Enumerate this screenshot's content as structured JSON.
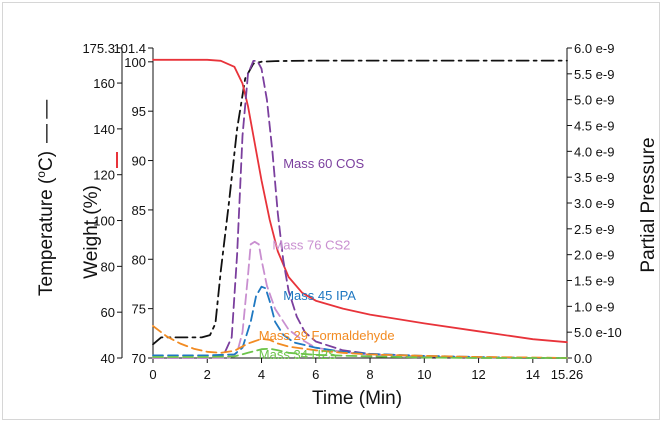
{
  "chart_data": {
    "type": "line",
    "title": "",
    "xlabel": "Time (Min)",
    "xlim": [
      0,
      15.26
    ],
    "x_ticks": [
      "0",
      "2",
      "4",
      "6",
      "8",
      "10",
      "12",
      "14",
      "15.26"
    ],
    "x_tick_values": [
      0,
      2,
      4,
      6,
      8,
      10,
      12,
      14,
      15.26
    ],
    "grid": false,
    "axes": {
      "temperature": {
        "label": "Temperature (",
        "label_sup": "o",
        "label_tail": "C)",
        "legend_marker": "— —",
        "ylim": [
          40,
          175.3
        ],
        "ticks": [
          "40",
          "60",
          "80",
          "100",
          "120",
          "140",
          "160",
          "175.3"
        ],
        "tick_values": [
          40,
          60,
          80,
          100,
          120,
          140,
          160,
          175.3
        ]
      },
      "weight": {
        "label": "Weight (%)",
        "ylim": [
          70,
          101.4
        ],
        "ticks": [
          "70",
          "75",
          "80",
          "85",
          "90",
          "95",
          "100",
          "101.4"
        ],
        "tick_values": [
          70,
          75,
          80,
          85,
          90,
          95,
          100,
          101.4
        ],
        "marker_color": "#e8333a"
      },
      "pressure": {
        "label": "Partial Pressure",
        "ylim": [
          0,
          6e-09
        ],
        "ticks": [
          "0.0",
          "5.0 e-10",
          "1.0 e-9",
          "1.5 e-9",
          "2.0 e-9",
          "2.5 e-9",
          "3.0 e-9",
          "3.5 e-9",
          "4.0 e-9",
          "4.5 e-9",
          "5.0 e-9",
          "5.5 e-9",
          "6.0 e-9"
        ],
        "tick_values": [
          0,
          5e-10,
          1e-09,
          1.5e-09,
          2e-09,
          2.5e-09,
          3e-09,
          3.5e-09,
          4e-09,
          4.5e-09,
          5e-09,
          5.5e-09,
          6e-09
        ]
      }
    },
    "series": [
      {
        "name": "",
        "axis": "temperature",
        "color": "#111111",
        "dash": "dashdot",
        "x": [
          0,
          0.3,
          1.0,
          1.8,
          2.1,
          2.3,
          2.5,
          2.8,
          3.1,
          3.4,
          3.7,
          4.0,
          4.5,
          6.0,
          8.0,
          10.0,
          12.0,
          14.0,
          15.26
        ],
        "y": [
          46,
          49,
          49,
          49,
          50,
          55,
          78,
          108,
          140,
          162,
          168.5,
          169.3,
          169.6,
          169.8,
          169.8,
          169.8,
          169.8,
          169.8,
          169.8
        ]
      },
      {
        "name": "",
        "axis": "weight",
        "color": "#e8333a",
        "dash": "solid",
        "x": [
          0,
          1.0,
          2.0,
          2.5,
          3.0,
          3.3,
          3.5,
          3.7,
          4.0,
          4.3,
          4.6,
          5.0,
          5.5,
          6.0,
          7.0,
          8.0,
          10.0,
          12.0,
          14.0,
          15.26
        ],
        "y": [
          100.2,
          100.2,
          100.2,
          100.1,
          99.5,
          97.8,
          95.5,
          92.5,
          88.0,
          84.0,
          80.8,
          78.2,
          76.6,
          75.8,
          75.0,
          74.4,
          73.5,
          72.7,
          71.9,
          71.6
        ]
      },
      {
        "name": "Mass 60 COS",
        "axis": "pressure",
        "color": "#7b3f9e",
        "dash": "dash",
        "label_at": [
          4.8,
          3.68e-09
        ],
        "x": [
          0,
          2.0,
          2.6,
          2.9,
          3.1,
          3.3,
          3.5,
          3.7,
          3.85,
          4.0,
          4.2,
          4.4,
          4.6,
          4.8,
          5.0,
          5.3,
          5.6,
          6.0,
          7.0,
          8.0,
          10.0,
          12.0,
          14.0,
          15.26
        ],
        "y": [
          0.0,
          0.0,
          5e-11,
          4e-10,
          2e-09,
          4.3e-09,
          5.5e-09,
          5.75e-09,
          5.75e-09,
          5.6e-09,
          5e-09,
          4e-09,
          2.8e-09,
          1.9e-09,
          1.3e-09,
          8e-10,
          5e-10,
          3.2e-10,
          1.5e-10,
          8e-11,
          3e-11,
          1e-11,
          0.0,
          0.0
        ]
      },
      {
        "name": "Mass 76 CS2",
        "axis": "pressure",
        "color": "#c98fd0",
        "dash": "dash",
        "label_at": [
          4.4,
          2.1e-09
        ],
        "x": [
          0,
          2.8,
          3.1,
          3.3,
          3.5,
          3.6,
          3.75,
          3.9,
          4.0,
          4.2,
          4.5,
          5.0,
          5.5,
          6.0,
          7.0,
          8.0,
          10.0,
          12.0,
          14.0,
          15.26
        ],
        "y": [
          0.0,
          0.0,
          1e-10,
          5e-10,
          1.6e-09,
          2.2e-09,
          2.25e-09,
          2.2e-09,
          1.9e-09,
          1.4e-09,
          9.5e-10,
          5.5e-10,
          3.5e-10,
          2e-10,
          1.2e-10,
          6e-11,
          2e-11,
          0.0,
          0.0,
          0.0
        ]
      },
      {
        "name": "Mass 45 IPA",
        "axis": "pressure",
        "color": "#1f78c1",
        "dash": "dash",
        "label_at": [
          4.8,
          1.12e-09
        ],
        "x": [
          0,
          2.0,
          3.0,
          3.3,
          3.6,
          3.8,
          4.0,
          4.15,
          4.3,
          4.5,
          4.8,
          5.2,
          6.0,
          7.0,
          8.0,
          10.0,
          12.0,
          14.0,
          15.26
        ],
        "y": [
          5e-11,
          5e-11,
          7e-11,
          2e-10,
          7e-10,
          1.2e-09,
          1.38e-09,
          1.35e-09,
          1.1e-09,
          7e-10,
          4.5e-10,
          3e-10,
          2e-10,
          1.2e-10,
          8e-11,
          4e-11,
          2e-11,
          0.0,
          0.0
        ]
      },
      {
        "name": "Mass 29 Formaldehyde",
        "axis": "pressure",
        "color": "#f28b22",
        "dash": "dash",
        "label_at": [
          3.9,
          3.5e-10
        ],
        "x": [
          0,
          0.5,
          1.0,
          1.5,
          2.0,
          2.5,
          3.0,
          3.5,
          4.0,
          4.3,
          4.6,
          5.0,
          6.0,
          7.0,
          8.0,
          10.0,
          12.0,
          14.0,
          15.26
        ],
        "y": [
          6.2e-10,
          4.2e-10,
          2.8e-10,
          1.8e-10,
          1.2e-10,
          1e-10,
          1.4e-10,
          2.8e-10,
          3.7e-10,
          3.5e-10,
          2.8e-10,
          2.2e-10,
          1.5e-10,
          1e-10,
          7e-11,
          4e-11,
          2e-11,
          1e-11,
          0.0
        ]
      },
      {
        "name": "Mass 34 H2S",
        "axis": "pressure",
        "color": "#6cc44a",
        "dash": "dash",
        "label_at": [
          3.9,
          -2e-11
        ],
        "x": [
          0,
          2.0,
          3.0,
          3.5,
          4.0,
          4.3,
          4.6,
          5.0,
          6.0,
          8.0,
          10.0,
          12.0,
          14.0,
          15.26
        ],
        "y": [
          2e-11,
          2e-11,
          3e-11,
          1e-10,
          1.7e-10,
          1.8e-10,
          1.5e-10,
          1e-10,
          6e-11,
          3e-11,
          1e-11,
          0.0,
          0.0,
          0.0
        ]
      }
    ]
  }
}
